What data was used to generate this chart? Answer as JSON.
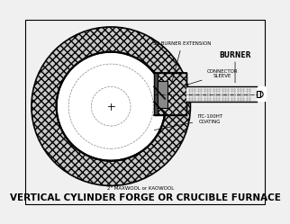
{
  "title": "VERTICAL CYLINDER FORGE OR CRUCIBLE FURNACE",
  "bg_color": "#f0f0f0",
  "labels": {
    "ss_burner": "SS BURNER EXTENSION",
    "burner": "BURNER",
    "connector": "CONNECTOR\nSLEEVE",
    "itc": "ITC-100HT\nCOATING",
    "maxwool": "2\" MAXWOOL or KAOWOOL"
  },
  "fig_width": 3.22,
  "fig_height": 2.49,
  "dpi": 100,
  "title_fontsize": 7.5
}
